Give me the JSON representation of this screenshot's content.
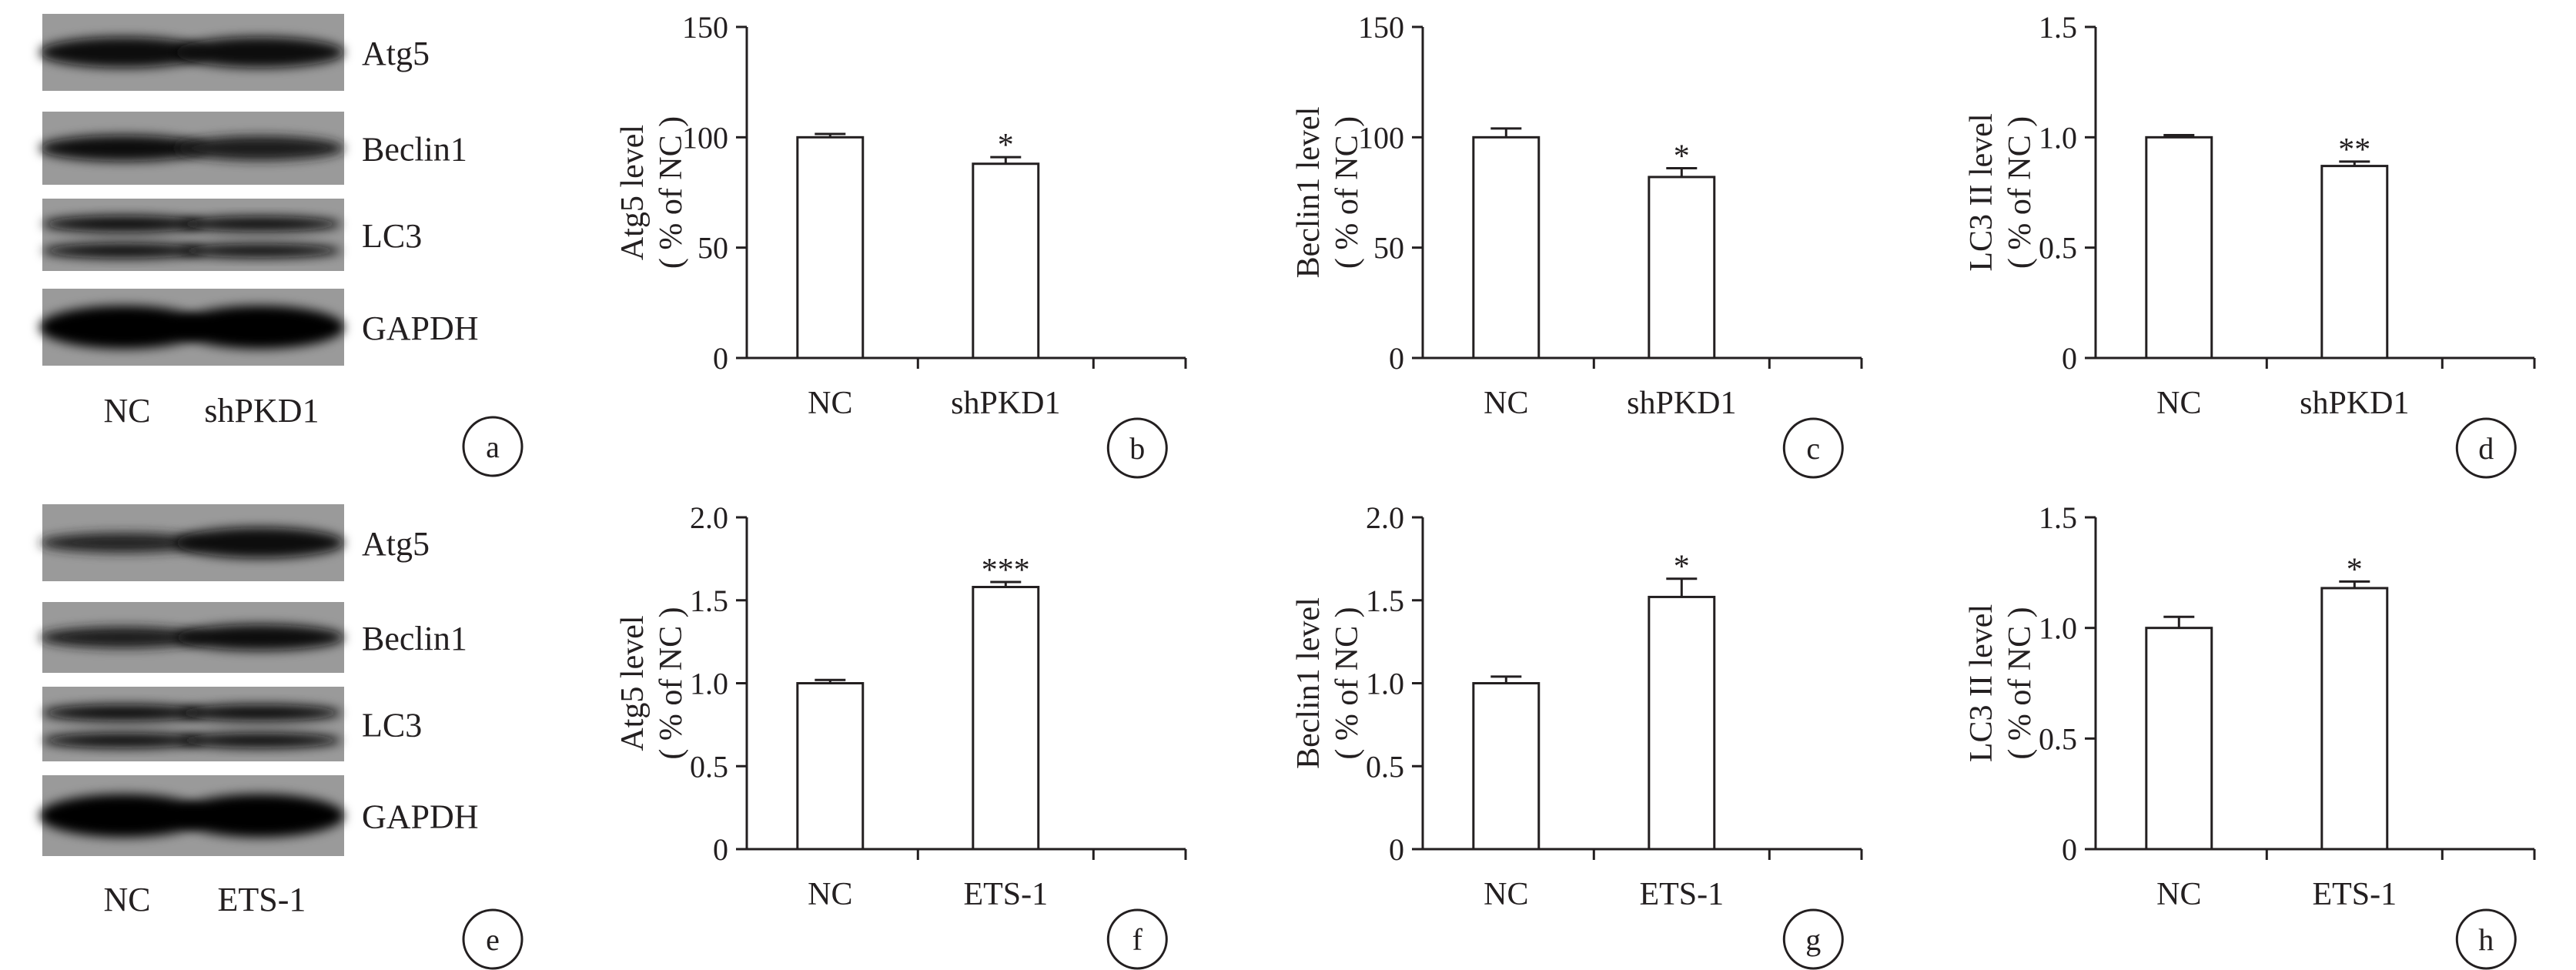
{
  "blots": [
    {
      "proteins": [
        "Atg5",
        "Beclin1",
        "LC3",
        "GAPDH"
      ],
      "lanes": [
        "NC",
        "shPKD1"
      ],
      "panel_label": "a"
    },
    {
      "proteins": [
        "Atg5",
        "Beclin1",
        "LC3",
        "GAPDH"
      ],
      "lanes": [
        "NC",
        "ETS-1"
      ],
      "panel_label": "e"
    }
  ],
  "chart_data": [
    {
      "panel_label": "b",
      "type": "bar",
      "categories": [
        "NC",
        "shPKD1"
      ],
      "values": [
        100,
        88
      ],
      "errors": [
        1.5,
        3
      ],
      "significance": [
        "",
        "*"
      ],
      "ylabel": "Atg5 level",
      "ylabel2": "( % of NC )",
      "ylim": [
        0,
        150
      ],
      "yticks": [
        "0",
        "50",
        "100",
        "150"
      ],
      "grid": false
    },
    {
      "panel_label": "c",
      "type": "bar",
      "categories": [
        "NC",
        "shPKD1"
      ],
      "values": [
        100,
        82
      ],
      "errors": [
        4,
        4
      ],
      "significance": [
        "",
        "*"
      ],
      "ylabel": "Beclin1 level",
      "ylabel2": "( % of NC )",
      "ylim": [
        0,
        150
      ],
      "yticks": [
        "0",
        "50",
        "100",
        "150"
      ],
      "grid": false
    },
    {
      "panel_label": "d",
      "type": "bar",
      "categories": [
        "NC",
        "shPKD1"
      ],
      "values": [
        1.0,
        0.87
      ],
      "errors": [
        0.01,
        0.02
      ],
      "significance": [
        "",
        "**"
      ],
      "ylabel": "LC3 II level",
      "ylabel2": "( % of NC )",
      "ylim": [
        0,
        1.5
      ],
      "yticks": [
        "0",
        "0.5",
        "1.0",
        "1.5"
      ],
      "grid": false
    },
    {
      "panel_label": "f",
      "type": "bar",
      "categories": [
        "NC",
        "ETS-1"
      ],
      "values": [
        1.0,
        1.58
      ],
      "errors": [
        0.02,
        0.03
      ],
      "significance": [
        "",
        "***"
      ],
      "ylabel": "Atg5 level",
      "ylabel2": "( % of NC )",
      "ylim": [
        0,
        2.0
      ],
      "yticks": [
        "0",
        "0.5",
        "1.0",
        "1.5",
        "2.0"
      ],
      "grid": false
    },
    {
      "panel_label": "g",
      "type": "bar",
      "categories": [
        "NC",
        "ETS-1"
      ],
      "values": [
        1.0,
        1.52
      ],
      "errors": [
        0.04,
        0.11
      ],
      "significance": [
        "",
        "*"
      ],
      "ylabel": "Beclin1 level",
      "ylabel2": "( % of NC )",
      "ylim": [
        0,
        2.0
      ],
      "yticks": [
        "0",
        "0.5",
        "1.0",
        "1.5",
        "2.0"
      ],
      "grid": false
    },
    {
      "panel_label": "h",
      "type": "bar",
      "categories": [
        "NC",
        "ETS-1"
      ],
      "values": [
        1.0,
        1.18
      ],
      "errors": [
        0.05,
        0.03
      ],
      "significance": [
        "",
        "*"
      ],
      "ylabel": "LC3 II level",
      "ylabel2": "( % of NC )",
      "ylim": [
        0,
        1.5
      ],
      "yticks": [
        "0",
        "0.5",
        "1.0",
        "1.5"
      ],
      "grid": false
    }
  ]
}
